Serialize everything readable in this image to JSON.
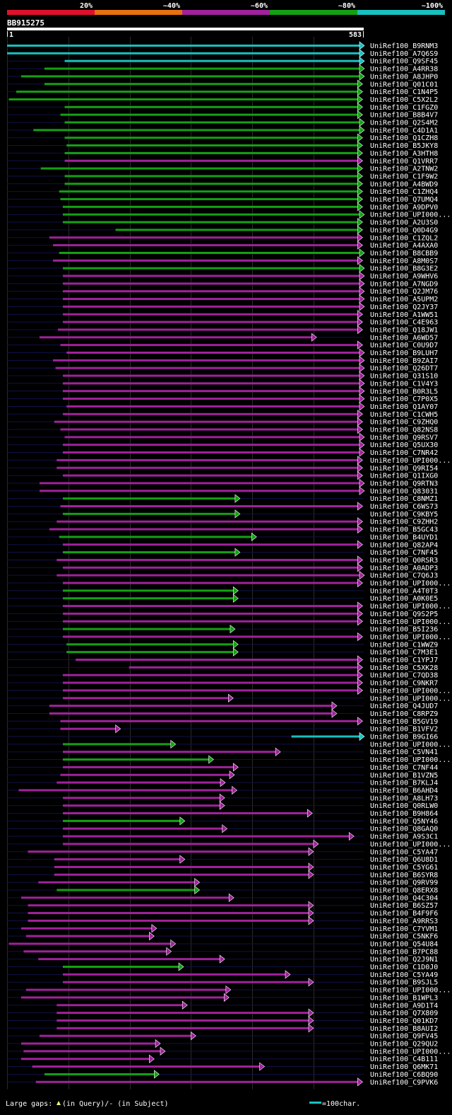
{
  "chart_data": {
    "type": "alignment-overview",
    "query_id": "BB915275",
    "scale": {
      "start": "1",
      "end": "583",
      "length": 583
    },
    "identity_legend": [
      {
        "label": "20%",
        "color": "#e0102c"
      },
      {
        "label": "~40%",
        "color": "#e8700e"
      },
      {
        "label": "~60%",
        "color": "#a0229c"
      },
      {
        "label": "~80%",
        "color": "#14a014"
      },
      {
        "label": "~100%",
        "color": "#18c0c0"
      }
    ],
    "hit_color_key": [
      "~100%",
      "~80%",
      "~60%"
    ],
    "hits": [
      {
        "id": "UniRef100_B9RNM3",
        "start": 1,
        "end": 583,
        "ident": "~100%"
      },
      {
        "id": "UniRef100_A7Q6S9",
        "start": 1,
        "end": 583,
        "ident": "~100%"
      },
      {
        "id": "UniRef100_Q9SF45",
        "start": 95,
        "end": 583,
        "ident": "~100%"
      },
      {
        "id": "UniRef100_A4RR38",
        "start": 62,
        "end": 583,
        "ident": "~80%"
      },
      {
        "id": "UniRef100_A8JHP0",
        "start": 24,
        "end": 583,
        "ident": "~80%"
      },
      {
        "id": "UniRef100_Q01C01",
        "start": 62,
        "end": 580,
        "ident": "~80%"
      },
      {
        "id": "UniRef100_C1N4P5",
        "start": 16,
        "end": 580,
        "ident": "~80%"
      },
      {
        "id": "UniRef100_C5X2L2",
        "start": 4,
        "end": 580,
        "ident": "~80%"
      },
      {
        "id": "UniRef100_C1FGZ0",
        "start": 95,
        "end": 580,
        "ident": "~80%"
      },
      {
        "id": "UniRef100_B8B4V7",
        "start": 88,
        "end": 580,
        "ident": "~80%"
      },
      {
        "id": "UniRef100_Q2S4M2",
        "start": 95,
        "end": 583,
        "ident": "~80%"
      },
      {
        "id": "UniRef100_C4D1A1",
        "start": 44,
        "end": 583,
        "ident": "~80%"
      },
      {
        "id": "UniRef100_Q1CZH8",
        "start": 95,
        "end": 580,
        "ident": "~80%"
      },
      {
        "id": "UniRef100_B5JKY8",
        "start": 98,
        "end": 580,
        "ident": "~80%"
      },
      {
        "id": "UniRef100_A3HTH8",
        "start": 95,
        "end": 580,
        "ident": "~80%"
      },
      {
        "id": "UniRef100_Q1VRR7",
        "start": 95,
        "end": 580,
        "ident": "~60%"
      },
      {
        "id": "UniRef100_A2TNW2",
        "start": 56,
        "end": 580,
        "ident": "~80%"
      },
      {
        "id": "UniRef100_C1F9W2",
        "start": 95,
        "end": 580,
        "ident": "~80%"
      },
      {
        "id": "UniRef100_A4BWD9",
        "start": 95,
        "end": 580,
        "ident": "~80%"
      },
      {
        "id": "UniRef100_C1ZHQ4",
        "start": 86,
        "end": 580,
        "ident": "~80%"
      },
      {
        "id": "UniRef100_Q7UMQ4",
        "start": 88,
        "end": 580,
        "ident": "~80%"
      },
      {
        "id": "UniRef100_A9DPV0",
        "start": 92,
        "end": 580,
        "ident": "~80%"
      },
      {
        "id": "UniRef100_UPI000...",
        "start": 92,
        "end": 583,
        "ident": "~80%"
      },
      {
        "id": "UniRef100_A2U3S0",
        "start": 92,
        "end": 580,
        "ident": "~80%"
      },
      {
        "id": "UniRef100_Q0D4G9",
        "start": 178,
        "end": 580,
        "ident": "~80%"
      },
      {
        "id": "UniRef100_C1ZQL2",
        "start": 70,
        "end": 580,
        "ident": "~60%"
      },
      {
        "id": "UniRef100_A4AXA0",
        "start": 76,
        "end": 580,
        "ident": "~60%"
      },
      {
        "id": "UniRef100_B8CBB9",
        "start": 86,
        "end": 583,
        "ident": "~80%"
      },
      {
        "id": "UniRef100_A8M0S7",
        "start": 76,
        "end": 580,
        "ident": "~60%"
      },
      {
        "id": "UniRef100_B8G3E2",
        "start": 92,
        "end": 583,
        "ident": "~80%"
      },
      {
        "id": "UniRef100_A9WHV6",
        "start": 92,
        "end": 583,
        "ident": "~60%"
      },
      {
        "id": "UniRef100_A7NGD9",
        "start": 92,
        "end": 583,
        "ident": "~60%"
      },
      {
        "id": "UniRef100_Q2JM76",
        "start": 92,
        "end": 583,
        "ident": "~60%"
      },
      {
        "id": "UniRef100_A5UPM2",
        "start": 92,
        "end": 583,
        "ident": "~60%"
      },
      {
        "id": "UniRef100_Q2JY37",
        "start": 92,
        "end": 583,
        "ident": "~60%"
      },
      {
        "id": "UniRef100_A1WW51",
        "start": 92,
        "end": 580,
        "ident": "~60%"
      },
      {
        "id": "UniRef100_C4E963",
        "start": 92,
        "end": 580,
        "ident": "~60%"
      },
      {
        "id": "UniRef100_Q18JW1",
        "start": 84,
        "end": 580,
        "ident": "~60%"
      },
      {
        "id": "UniRef100_A6WD57",
        "start": 54,
        "end": 505,
        "ident": "~60%"
      },
      {
        "id": "UniRef100_C0U9D7",
        "start": 88,
        "end": 580,
        "ident": "~60%"
      },
      {
        "id": "UniRef100_B9LUH7",
        "start": 98,
        "end": 583,
        "ident": "~60%"
      },
      {
        "id": "UniRef100_B9ZAI7",
        "start": 76,
        "end": 583,
        "ident": "~60%"
      },
      {
        "id": "UniRef100_Q26DT7",
        "start": 80,
        "end": 583,
        "ident": "~60%"
      },
      {
        "id": "UniRef100_Q31S10",
        "start": 92,
        "end": 583,
        "ident": "~60%"
      },
      {
        "id": "UniRef100_C1V4Y3",
        "start": 92,
        "end": 583,
        "ident": "~60%"
      },
      {
        "id": "UniRef100_B0R3L5",
        "start": 92,
        "end": 583,
        "ident": "~60%"
      },
      {
        "id": "UniRef100_C7P0X5",
        "start": 92,
        "end": 583,
        "ident": "~60%"
      },
      {
        "id": "UniRef100_Q1AY07",
        "start": 98,
        "end": 583,
        "ident": "~60%"
      },
      {
        "id": "UniRef100_C1CWH5",
        "start": 92,
        "end": 580,
        "ident": "~60%"
      },
      {
        "id": "UniRef100_C9ZHQ0",
        "start": 78,
        "end": 580,
        "ident": "~60%"
      },
      {
        "id": "UniRef100_Q82NS8",
        "start": 88,
        "end": 580,
        "ident": "~60%"
      },
      {
        "id": "UniRef100_Q9RSV7",
        "start": 95,
        "end": 583,
        "ident": "~60%"
      },
      {
        "id": "UniRef100_Q5UX30",
        "start": 92,
        "end": 583,
        "ident": "~60%"
      },
      {
        "id": "UniRef100_C7NR42",
        "start": 92,
        "end": 583,
        "ident": "~60%"
      },
      {
        "id": "UniRef100_UPI000...",
        "start": 82,
        "end": 580,
        "ident": "~60%"
      },
      {
        "id": "UniRef100_Q9RI54",
        "start": 82,
        "end": 580,
        "ident": "~60%"
      },
      {
        "id": "UniRef100_Q1IXG0",
        "start": 92,
        "end": 580,
        "ident": "~60%"
      },
      {
        "id": "UniRef100_Q9RTN3",
        "start": 54,
        "end": 583,
        "ident": "~60%"
      },
      {
        "id": "UniRef100_Q83031",
        "start": 54,
        "end": 583,
        "ident": "~60%"
      },
      {
        "id": "UniRef100_C8NMZ1",
        "start": 92,
        "end": 380,
        "ident": "~80%"
      },
      {
        "id": "UniRef100_C6WS73",
        "start": 88,
        "end": 580,
        "ident": "~60%"
      },
      {
        "id": "UniRef100_C9KBY5",
        "start": 92,
        "end": 380,
        "ident": "~80%"
      },
      {
        "id": "UniRef100_C9ZHH2",
        "start": 82,
        "end": 580,
        "ident": "~60%"
      },
      {
        "id": "UniRef100_B5GC43",
        "start": 70,
        "end": 580,
        "ident": "~60%"
      },
      {
        "id": "UniRef100_B4UYD1",
        "start": 86,
        "end": 407,
        "ident": "~80%"
      },
      {
        "id": "UniRef100_Q82AP4",
        "start": 92,
        "end": 580,
        "ident": "~60%"
      },
      {
        "id": "UniRef100_C7NF45",
        "start": 92,
        "end": 380,
        "ident": "~80%"
      },
      {
        "id": "UniRef100_Q0RSR3",
        "start": 82,
        "end": 580,
        "ident": "~60%"
      },
      {
        "id": "UniRef100_A0ADP3",
        "start": 92,
        "end": 580,
        "ident": "~60%"
      },
      {
        "id": "UniRef100_C7Q6J3",
        "start": 82,
        "end": 583,
        "ident": "~60%"
      },
      {
        "id": "UniRef100_UPI000...",
        "start": 92,
        "end": 580,
        "ident": "~60%"
      },
      {
        "id": "UniRef100_A4T0T3",
        "start": 92,
        "end": 377,
        "ident": "~80%"
      },
      {
        "id": "UniRef100_A0K0E5",
        "start": 92,
        "end": 377,
        "ident": "~80%"
      },
      {
        "id": "UniRef100_UPI000...",
        "start": 92,
        "end": 580,
        "ident": "~60%"
      },
      {
        "id": "UniRef100_Q9S2P5",
        "start": 92,
        "end": 580,
        "ident": "~60%"
      },
      {
        "id": "UniRef100_UPI000...",
        "start": 92,
        "end": 580,
        "ident": "~60%"
      },
      {
        "id": "UniRef100_B5I236",
        "start": 92,
        "end": 372,
        "ident": "~80%"
      },
      {
        "id": "UniRef100_UPI000...",
        "start": 92,
        "end": 580,
        "ident": "~60%"
      },
      {
        "id": "UniRef100_C1WWZ9",
        "start": 98,
        "end": 377,
        "ident": "~80%"
      },
      {
        "id": "UniRef100_C7M3E1",
        "start": 98,
        "end": 377,
        "ident": "~80%"
      },
      {
        "id": "UniRef100_C1YPJ7",
        "start": 113,
        "end": 580,
        "ident": "~60%"
      },
      {
        "id": "UniRef100_C5XK28",
        "start": 200,
        "end": 580,
        "ident": "~60%"
      },
      {
        "id": "UniRef100_C7QD38",
        "start": 92,
        "end": 580,
        "ident": "~60%"
      },
      {
        "id": "UniRef100_C9NKR7",
        "start": 92,
        "end": 580,
        "ident": "~60%"
      },
      {
        "id": "UniRef100_UPI000...",
        "start": 92,
        "end": 580,
        "ident": "~60%"
      },
      {
        "id": "UniRef100_UPI000...",
        "start": 92,
        "end": 369,
        "ident": "~60%"
      },
      {
        "id": "UniRef100_Q4JUD7",
        "start": 70,
        "end": 538,
        "ident": "~60%"
      },
      {
        "id": "UniRef100_C8RPZ9",
        "start": 70,
        "end": 538,
        "ident": "~60%"
      },
      {
        "id": "UniRef100_B5GV19",
        "start": 88,
        "end": 580,
        "ident": "~60%"
      },
      {
        "id": "UniRef100_B1VFV2",
        "start": 88,
        "end": 185,
        "ident": "~60%"
      },
      {
        "id": "UniRef100_B9GI66",
        "start": 465,
        "end": 583,
        "ident": "~100%"
      },
      {
        "id": "UniRef100_UPI000...",
        "start": 92,
        "end": 275,
        "ident": "~80%"
      },
      {
        "id": "UniRef100_C5VN41",
        "start": 92,
        "end": 446,
        "ident": "~60%"
      },
      {
        "id": "UniRef100_UPI000...",
        "start": 92,
        "end": 337,
        "ident": "~80%"
      },
      {
        "id": "UniRef100_C7NF44",
        "start": 92,
        "end": 377,
        "ident": "~60%"
      },
      {
        "id": "UniRef100_B1VZN5",
        "start": 88,
        "end": 371,
        "ident": "~60%"
      },
      {
        "id": "UniRef100_B7KLJ4",
        "start": 82,
        "end": 356,
        "ident": "~60%"
      },
      {
        "id": "UniRef100_B6AHD4",
        "start": 20,
        "end": 375,
        "ident": "~60%"
      },
      {
        "id": "UniRef100_A8LH73",
        "start": 92,
        "end": 355,
        "ident": "~60%"
      },
      {
        "id": "UniRef100_Q0RLW0",
        "start": 92,
        "end": 355,
        "ident": "~60%"
      },
      {
        "id": "UniRef100_B9H864",
        "start": 92,
        "end": 498,
        "ident": "~60%"
      },
      {
        "id": "UniRef100_Q5NY46",
        "start": 92,
        "end": 290,
        "ident": "~80%"
      },
      {
        "id": "UniRef100_Q8GAQ0",
        "start": 92,
        "end": 359,
        "ident": "~60%"
      },
      {
        "id": "UniRef100_A9S3C1",
        "start": 92,
        "end": 566,
        "ident": "~60%"
      },
      {
        "id": "UniRef100_UPI000...",
        "start": 92,
        "end": 508,
        "ident": "~60%"
      },
      {
        "id": "UniRef100_C5YA47",
        "start": 35,
        "end": 500,
        "ident": "~60%"
      },
      {
        "id": "UniRef100_Q6U8D1",
        "start": 78,
        "end": 290,
        "ident": "~60%"
      },
      {
        "id": "UniRef100_C5YG61",
        "start": 78,
        "end": 500,
        "ident": "~60%"
      },
      {
        "id": "UniRef100_B6SYR8",
        "start": 78,
        "end": 500,
        "ident": "~60%"
      },
      {
        "id": "UniRef100_Q9RV99",
        "start": 52,
        "end": 314,
        "ident": "~60%"
      },
      {
        "id": "UniRef100_Q8ERX8",
        "start": 82,
        "end": 314,
        "ident": "~80%"
      },
      {
        "id": "UniRef100_Q4C304",
        "start": 24,
        "end": 370,
        "ident": "~60%"
      },
      {
        "id": "UniRef100_B6SZ57",
        "start": 35,
        "end": 500,
        "ident": "~60%"
      },
      {
        "id": "UniRef100_B4F9F6",
        "start": 35,
        "end": 500,
        "ident": "~60%"
      },
      {
        "id": "UniRef100_A9RRS3",
        "start": 35,
        "end": 500,
        "ident": "~60%"
      },
      {
        "id": "UniRef100_C7YVM1",
        "start": 24,
        "end": 244,
        "ident": "~60%"
      },
      {
        "id": "UniRef100_C5NKF6",
        "start": 32,
        "end": 240,
        "ident": "~60%"
      },
      {
        "id": "UniRef100_Q54U84",
        "start": 4,
        "end": 275,
        "ident": "~60%"
      },
      {
        "id": "UniRef100_B7PC88",
        "start": 28,
        "end": 268,
        "ident": "~60%"
      },
      {
        "id": "UniRef100_Q2J9N1",
        "start": 52,
        "end": 355,
        "ident": "~60%"
      },
      {
        "id": "UniRef100_C1D0J0",
        "start": 92,
        "end": 288,
        "ident": "~80%"
      },
      {
        "id": "UniRef100_C5YA49",
        "start": 92,
        "end": 462,
        "ident": "~60%"
      },
      {
        "id": "UniRef100_B9SJL5",
        "start": 92,
        "end": 500,
        "ident": "~60%"
      },
      {
        "id": "UniRef100_UPI000...",
        "start": 32,
        "end": 365,
        "ident": "~60%"
      },
      {
        "id": "UniRef100_B1WPL3",
        "start": 24,
        "end": 362,
        "ident": "~60%"
      },
      {
        "id": "UniRef100_A9D1T4",
        "start": 82,
        "end": 294,
        "ident": "~60%"
      },
      {
        "id": "UniRef100_Q7X809",
        "start": 82,
        "end": 500,
        "ident": "~60%"
      },
      {
        "id": "UniRef100_Q01KD7",
        "start": 82,
        "end": 500,
        "ident": "~60%"
      },
      {
        "id": "UniRef100_B8AUI2",
        "start": 82,
        "end": 500,
        "ident": "~60%"
      },
      {
        "id": "UniRef100_Q9FV45",
        "start": 54,
        "end": 308,
        "ident": "~60%"
      },
      {
        "id": "UniRef100_Q29QU2",
        "start": 24,
        "end": 250,
        "ident": "~60%"
      },
      {
        "id": "UniRef100_UPI000...",
        "start": 28,
        "end": 258,
        "ident": "~60%"
      },
      {
        "id": "UniRef100_C4B111",
        "start": 24,
        "end": 240,
        "ident": "~60%"
      },
      {
        "id": "UniRef100_Q6MK71",
        "start": 42,
        "end": 420,
        "ident": "~60%"
      },
      {
        "id": "UniRef100_C6BQ90",
        "start": 62,
        "end": 248,
        "ident": "~80%"
      },
      {
        "id": "UniRef100_C9PVK6",
        "start": 48,
        "end": 580,
        "ident": "~60%"
      }
    ],
    "footer": {
      "gaps_prefix": "Large gaps: ",
      "gaps_suffix": "(in Query)/- (in Subject)",
      "scale_note": "=100char."
    }
  }
}
